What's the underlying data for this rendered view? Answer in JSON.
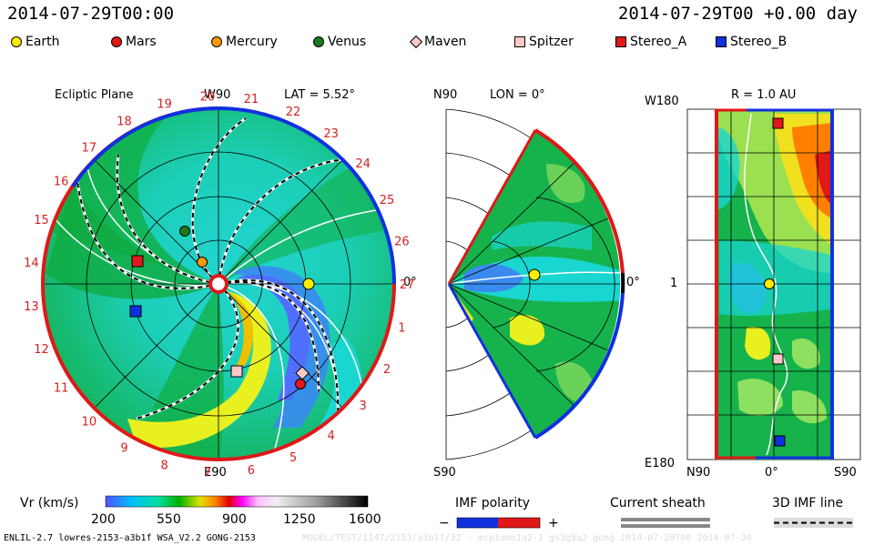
{
  "header": {
    "timestamp": "2014-07-29T00:00",
    "forecast": "2014-07-29T00 +0.00 day"
  },
  "legend": [
    {
      "label": "Earth",
      "color": "#ffee00",
      "shape": "circle"
    },
    {
      "label": "Mars",
      "color": "#e01818",
      "shape": "circle"
    },
    {
      "label": "Mercury",
      "color": "#ff9900",
      "shape": "circle"
    },
    {
      "label": "Venus",
      "color": "#1a7a1a",
      "shape": "circle"
    },
    {
      "label": "Maven",
      "color": "#ffc8c8",
      "shape": "diamond"
    },
    {
      "label": "Spitzer",
      "color": "#ffc8c8",
      "shape": "square"
    },
    {
      "label": "Stereo_A",
      "color": "#e01818",
      "shape": "square"
    },
    {
      "label": "Stereo_B",
      "color": "#1030e0",
      "shape": "square"
    }
  ],
  "ecliptic": {
    "title": "Ecliptic Plane",
    "lat": "LAT = 5.52°",
    "top_label": "W90",
    "bottom_label": "E90",
    "right_label": "0°",
    "sector_numbers": [
      "27",
      "1",
      "2",
      "3",
      "4",
      "5",
      "6",
      "7",
      "8",
      "9",
      "10",
      "11",
      "12",
      "13",
      "14",
      "15",
      "16",
      "17",
      "18",
      "19",
      "20",
      "21",
      "22",
      "23",
      "24",
      "25",
      "26"
    ]
  },
  "meridional": {
    "top_label": "N90",
    "lon": "LON = 0°",
    "bottom_label": "S90",
    "right_label": "0°"
  },
  "radial": {
    "r_label": "R = 1.0 AU",
    "top_left": "W180",
    "mid_left": "1",
    "bottom_left": "E180",
    "x_left": "N90",
    "x_mid": "0°",
    "x_right": "S90"
  },
  "colorbar": {
    "label": "Vr (km/s)",
    "ticks": [
      "200",
      "550",
      "900",
      "1250",
      "1600"
    ]
  },
  "imf": {
    "label": "IMF polarity",
    "minus": "−",
    "plus": "+",
    "minus_color": "#1030e0",
    "plus_color": "#e01818"
  },
  "sheath": {
    "label": "Current sheath"
  },
  "imf3d": {
    "label": "3D IMF line"
  },
  "footer": {
    "left": "ENLIL-2.7 lowres-2153-a3b1f WSA_V2.2 GONG-2153",
    "right_faint": "MODEL/TEST/1147/2153/a3b1f/32 - mcp1umn1a2-1 gs3q5a2 gong 2014-07-29T00     2014-07-30"
  }
}
